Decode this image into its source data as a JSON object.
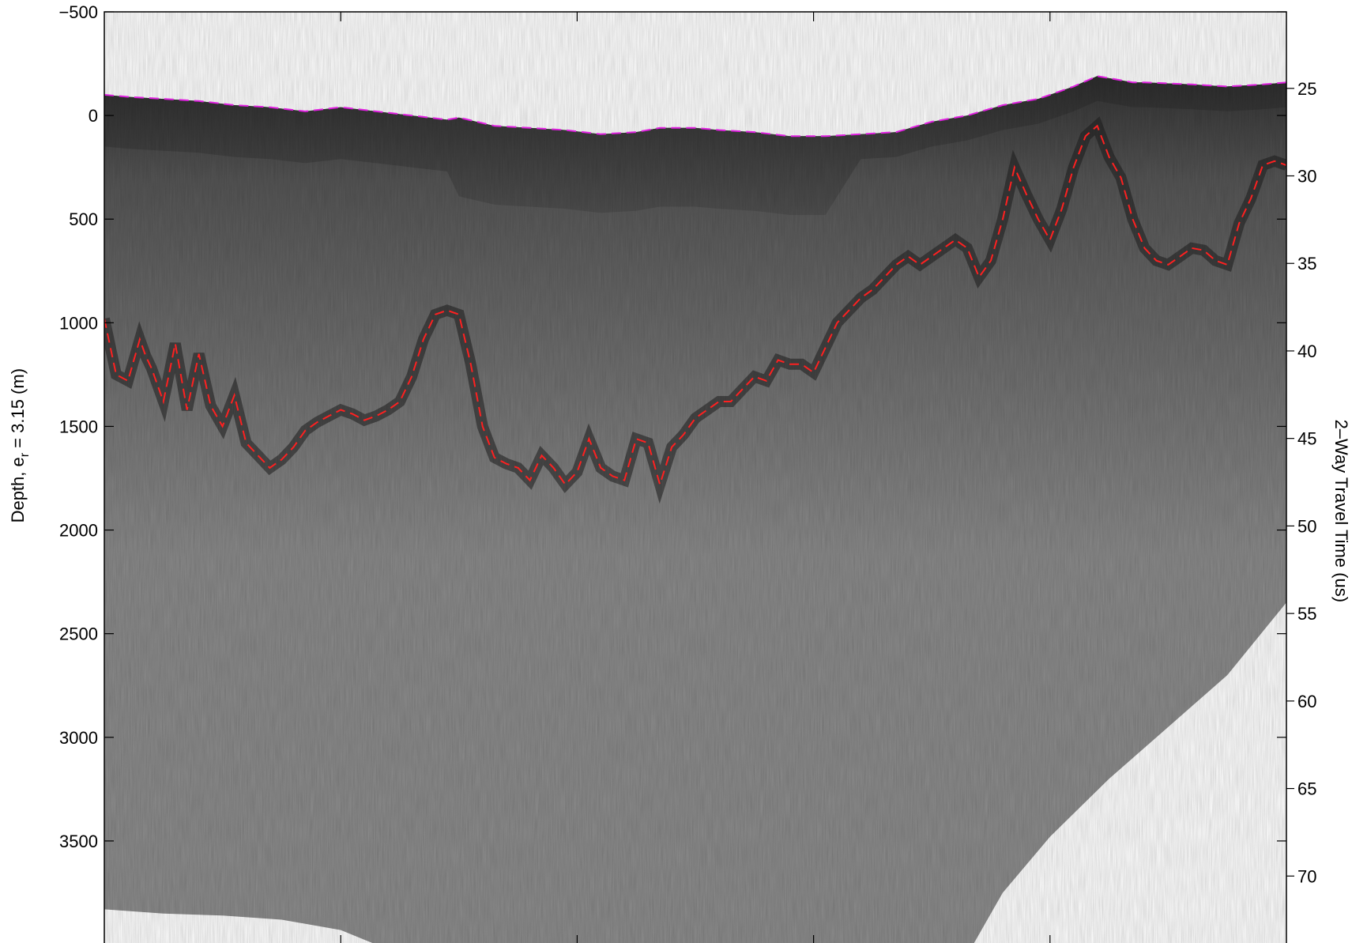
{
  "chart_data": {
    "type": "radargram",
    "title": "",
    "left_axis": {
      "label_main": "Depth, e",
      "label_sub": "r",
      "label_tail": " = 3.15 (m)",
      "ylim": [
        -500,
        4000
      ],
      "reversed": true,
      "ticks": [
        -500,
        0,
        500,
        1000,
        1500,
        2000,
        2500,
        3000,
        3500
      ],
      "tick_labels": [
        "−500",
        "0",
        "500",
        "1000",
        "1500",
        "2000",
        "2500",
        "3000",
        "3500"
      ]
    },
    "right_axis": {
      "label": "2–Way Travel Time (us)",
      "ticks": [
        25,
        30,
        35,
        40,
        45,
        50,
        55,
        60,
        65,
        70
      ],
      "tick_labels": [
        "25",
        "30",
        "35",
        "40",
        "45",
        "50",
        "55",
        "60",
        "65",
        "70"
      ],
      "conversion": {
        "depth_ref": 0,
        "time_ref": 26.55,
        "depth_per_us": 84.45
      }
    },
    "x_axis": {
      "label": "",
      "xlim": [
        0,
        1
      ],
      "ticks": [
        0.2,
        0.4,
        0.6,
        0.8
      ],
      "tick_labels": []
    },
    "colors": {
      "surface_pick": "#e020e0",
      "bed_pick": "#ff2020",
      "image_light": "#8e8e8e",
      "image_dark": "#2a2a2a",
      "ice_band": "#5a5a5a"
    },
    "series": [
      {
        "kind": "surface-pick",
        "x": [
          0,
          0.02,
          0.05,
          0.08,
          0.11,
          0.14,
          0.17,
          0.2,
          0.23,
          0.26,
          0.29,
          0.3,
          0.33,
          0.36,
          0.39,
          0.42,
          0.45,
          0.47,
          0.5,
          0.52,
          0.55,
          0.58,
          0.61,
          0.64,
          0.67,
          0.7,
          0.73,
          0.76,
          0.79,
          0.8,
          0.82,
          0.84,
          0.86,
          0.87,
          0.88,
          0.9,
          0.92,
          0.95,
          0.98,
          1.0
        ],
        "y": [
          -100,
          -90,
          -80,
          -70,
          -50,
          -40,
          -20,
          -40,
          -20,
          0,
          20,
          10,
          50,
          60,
          70,
          90,
          80,
          60,
          60,
          70,
          80,
          100,
          100,
          90,
          80,
          30,
          0,
          -50,
          -80,
          -100,
          -140,
          -190,
          -170,
          -160,
          -160,
          -155,
          -150,
          -140,
          -150,
          -160
        ]
      },
      {
        "kind": "bed-pick",
        "x": [
          0,
          0.01,
          0.02,
          0.03,
          0.035,
          0.04,
          0.05,
          0.06,
          0.07,
          0.08,
          0.09,
          0.1,
          0.11,
          0.12,
          0.13,
          0.14,
          0.15,
          0.16,
          0.17,
          0.18,
          0.19,
          0.2,
          0.21,
          0.22,
          0.23,
          0.24,
          0.25,
          0.26,
          0.27,
          0.28,
          0.29,
          0.3,
          0.31,
          0.32,
          0.33,
          0.34,
          0.35,
          0.36,
          0.37,
          0.38,
          0.39,
          0.4,
          0.41,
          0.42,
          0.43,
          0.44,
          0.45,
          0.46,
          0.47,
          0.48,
          0.49,
          0.5,
          0.51,
          0.52,
          0.53,
          0.54,
          0.55,
          0.56,
          0.57,
          0.58,
          0.59,
          0.6,
          0.61,
          0.62,
          0.63,
          0.64,
          0.65,
          0.66,
          0.67,
          0.68,
          0.69,
          0.7,
          0.71,
          0.72,
          0.73,
          0.74,
          0.75,
          0.76,
          0.77,
          0.78,
          0.79,
          0.8,
          0.81,
          0.82,
          0.83,
          0.84,
          0.85,
          0.86,
          0.87,
          0.88,
          0.89,
          0.9,
          0.91,
          0.92,
          0.93,
          0.94,
          0.95,
          0.96,
          0.97,
          0.98,
          0.99,
          1.0
        ],
        "y": [
          980,
          1250,
          1280,
          1080,
          1160,
          1220,
          1380,
          1100,
          1420,
          1150,
          1400,
          1500,
          1350,
          1580,
          1640,
          1700,
          1660,
          1600,
          1520,
          1480,
          1450,
          1420,
          1440,
          1470,
          1450,
          1420,
          1380,
          1260,
          1080,
          960,
          940,
          960,
          1200,
          1500,
          1650,
          1680,
          1700,
          1760,
          1640,
          1700,
          1780,
          1720,
          1560,
          1700,
          1740,
          1760,
          1560,
          1580,
          1780,
          1600,
          1540,
          1460,
          1420,
          1380,
          1380,
          1320,
          1260,
          1280,
          1180,
          1200,
          1200,
          1240,
          1120,
          1000,
          940,
          880,
          840,
          780,
          720,
          680,
          720,
          680,
          640,
          600,
          640,
          780,
          700,
          500,
          250,
          380,
          500,
          600,
          450,
          250,
          100,
          50,
          200,
          300,
          500,
          640,
          700,
          720,
          680,
          640,
          650,
          700,
          720,
          520,
          400,
          240,
          220,
          240
        ]
      }
    ]
  }
}
